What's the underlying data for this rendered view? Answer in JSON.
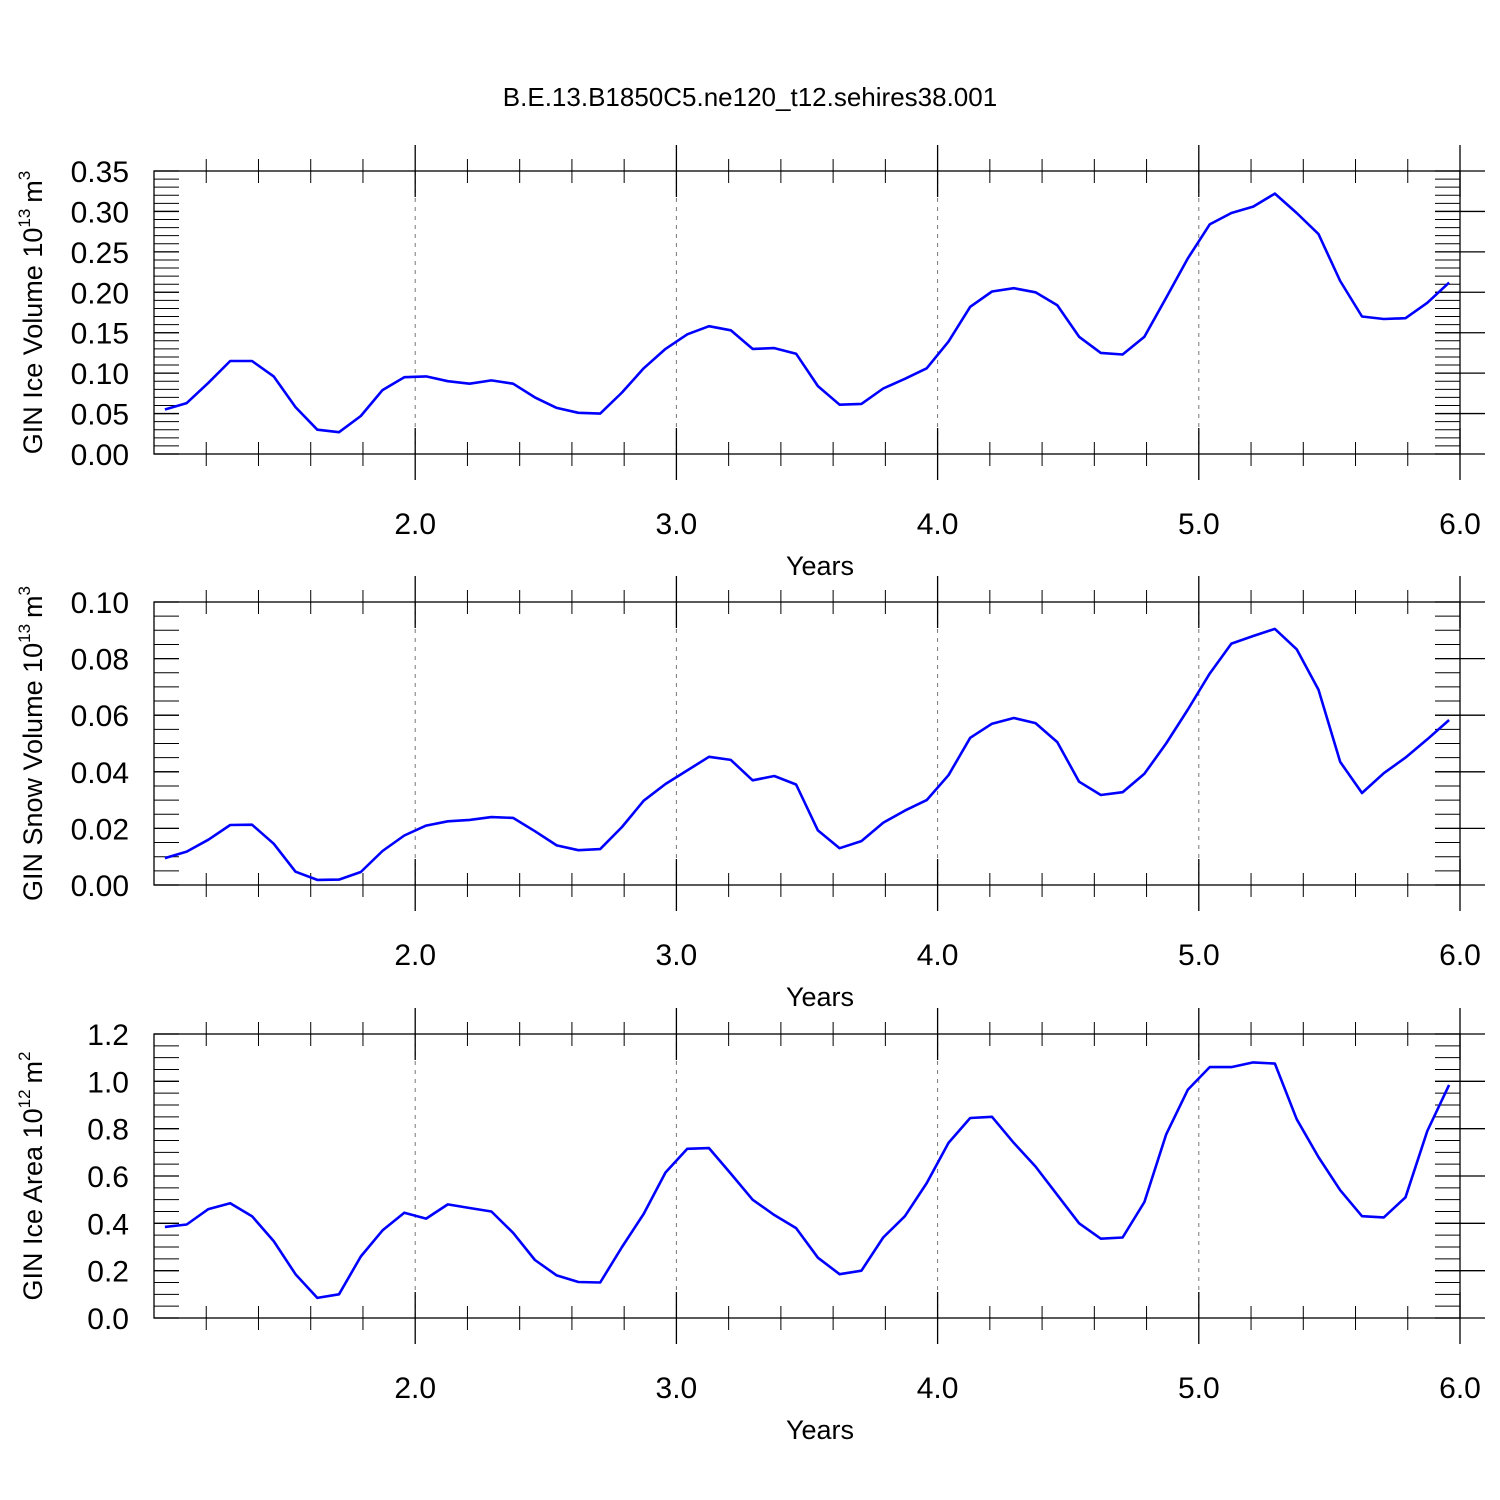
{
  "page": {
    "title": "B.E.13.B1850C5.ne120_t12.sehires38.001"
  },
  "colors": {
    "series": "#0000ff",
    "axis": "#000000",
    "grid": "#777777"
  },
  "chart_data": [
    {
      "type": "line",
      "name": "ice-volume",
      "ylabel": "GIN Ice Volume",
      "yunit_base": "10",
      "yunit_exp": "13",
      "yunit_tail": "m",
      "yunit_tail_exp": "3",
      "xlabel": "Years",
      "xlim": [
        1.0,
        6.0
      ],
      "xticks": [
        2.0,
        3.0,
        4.0,
        5.0,
        6.0
      ],
      "xtick_labels": [
        "2.0",
        "3.0",
        "4.0",
        "5.0",
        "6.0"
      ],
      "ylim": [
        0,
        0.35
      ],
      "yticks": [
        0,
        0.05,
        0.1,
        0.15,
        0.2,
        0.25,
        0.3,
        0.35
      ],
      "ytick_labels": [
        "0.00",
        "0.05",
        "0.10",
        "0.15",
        "0.20",
        "0.25",
        "0.30",
        "0.35"
      ],
      "ytick_minor_step": 0.01,
      "xstart": 1.0417,
      "xstep": 0.08333,
      "values": [
        0.055,
        0.063,
        0.088,
        0.115,
        0.115,
        0.096,
        0.058,
        0.03,
        0.027,
        0.047,
        0.079,
        0.095,
        0.096,
        0.09,
        0.087,
        0.091,
        0.087,
        0.07,
        0.057,
        0.051,
        0.05,
        0.076,
        0.106,
        0.13,
        0.148,
        0.158,
        0.153,
        0.13,
        0.131,
        0.124,
        0.084,
        0.061,
        0.062,
        0.081,
        0.093,
        0.106,
        0.139,
        0.182,
        0.201,
        0.205,
        0.2,
        0.184,
        0.145,
        0.125,
        0.123,
        0.145,
        0.193,
        0.242,
        0.284,
        0.298,
        0.306,
        0.322,
        0.298,
        0.272,
        0.214,
        0.17,
        0.167,
        0.168,
        0.187,
        0.212
      ]
    },
    {
      "type": "line",
      "name": "snow-volume",
      "ylabel": "GIN Snow Volume",
      "yunit_base": "10",
      "yunit_exp": "13",
      "yunit_tail": "m",
      "yunit_tail_exp": "3",
      "xlabel": "Years",
      "xlim": [
        1.0,
        6.0
      ],
      "xticks": [
        2.0,
        3.0,
        4.0,
        5.0,
        6.0
      ],
      "xtick_labels": [
        "2.0",
        "3.0",
        "4.0",
        "5.0",
        "6.0"
      ],
      "ylim": [
        0,
        0.1
      ],
      "yticks": [
        0,
        0.02,
        0.04,
        0.06,
        0.08,
        0.1
      ],
      "ytick_labels": [
        "0.00",
        "0.02",
        "0.04",
        "0.06",
        "0.08",
        "0.10"
      ],
      "ytick_minor_step": 0.005,
      "xstart": 1.0417,
      "xstep": 0.08333,
      "values": [
        0.0095,
        0.0118,
        0.016,
        0.0212,
        0.0213,
        0.0146,
        0.0047,
        0.0018,
        0.0019,
        0.0046,
        0.012,
        0.0175,
        0.021,
        0.0225,
        0.023,
        0.024,
        0.0237,
        0.019,
        0.014,
        0.0123,
        0.0127,
        0.0205,
        0.0298,
        0.0357,
        0.0405,
        0.0453,
        0.0442,
        0.037,
        0.0385,
        0.0355,
        0.0193,
        0.013,
        0.0155,
        0.022,
        0.0263,
        0.03,
        0.0388,
        0.052,
        0.057,
        0.059,
        0.0572,
        0.0505,
        0.0365,
        0.0318,
        0.0328,
        0.0393,
        0.05,
        0.062,
        0.0747,
        0.0853,
        0.088,
        0.0905,
        0.0833,
        0.069,
        0.0435,
        0.0325,
        0.0395,
        0.045,
        0.0515,
        0.0583
      ]
    },
    {
      "type": "line",
      "name": "ice-area",
      "ylabel": "GIN Ice Area",
      "yunit_base": "10",
      "yunit_exp": "12",
      "yunit_tail": "m",
      "yunit_tail_exp": "2",
      "xlabel": "Years",
      "xlim": [
        1.0,
        6.0
      ],
      "xticks": [
        2.0,
        3.0,
        4.0,
        5.0,
        6.0
      ],
      "xtick_labels": [
        "2.0",
        "3.0",
        "4.0",
        "5.0",
        "6.0"
      ],
      "ylim": [
        0,
        1.2
      ],
      "yticks": [
        0,
        0.2,
        0.4,
        0.6,
        0.8,
        1.0,
        1.2
      ],
      "ytick_labels": [
        "0.0",
        "0.2",
        "0.4",
        "0.6",
        "0.8",
        "1.0",
        "1.2"
      ],
      "ytick_minor_step": 0.05,
      "xstart": 1.0417,
      "xstep": 0.08333,
      "values": [
        0.385,
        0.395,
        0.46,
        0.485,
        0.43,
        0.325,
        0.185,
        0.085,
        0.1,
        0.26,
        0.37,
        0.445,
        0.42,
        0.48,
        0.465,
        0.45,
        0.36,
        0.245,
        0.18,
        0.152,
        0.15,
        0.3,
        0.44,
        0.615,
        0.715,
        0.718,
        0.61,
        0.5,
        0.435,
        0.38,
        0.255,
        0.185,
        0.2,
        0.34,
        0.43,
        0.57,
        0.74,
        0.845,
        0.85,
        0.74,
        0.64,
        0.52,
        0.4,
        0.335,
        0.34,
        0.49,
        0.775,
        0.965,
        1.06,
        1.06,
        1.08,
        1.075,
        0.84,
        0.68,
        0.54,
        0.43,
        0.425,
        0.51,
        0.79,
        0.985
      ]
    }
  ]
}
